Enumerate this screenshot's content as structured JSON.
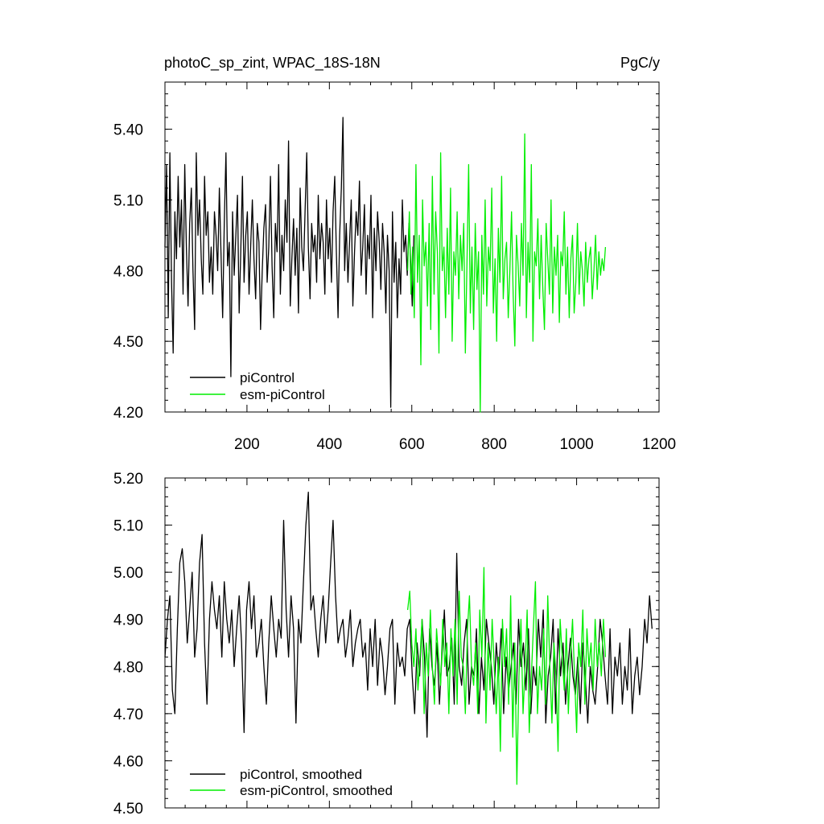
{
  "header": {
    "title": "photoC_sp_zint, WPAC_18S-18N",
    "units": "PgC/y"
  },
  "colors": {
    "piControl": "#000000",
    "esm_piControl": "#00ee00"
  },
  "chart_data": [
    {
      "type": "line",
      "panel": "top",
      "xlim": [
        1,
        1200
      ],
      "ylim": [
        4.2,
        5.6
      ],
      "yticks": [
        4.2,
        4.5,
        4.8,
        5.1,
        5.4
      ],
      "yticklabels": [
        "4.20",
        "4.50",
        "4.80",
        "5.10",
        "5.40"
      ],
      "xticks": [
        200,
        400,
        600,
        800,
        1000,
        1200
      ],
      "xticklabels": [
        "200",
        "400",
        "600",
        "800",
        "1000",
        "1200"
      ],
      "legend": "bottom-left",
      "grid": false,
      "series": [
        {
          "name": "piControl",
          "color": "#000000",
          "x_start": 1,
          "x_step": 4,
          "values": [
            4.9,
            5.25,
            4.6,
            5.3,
            4.75,
            4.45,
            5.05,
            4.85,
            5.2,
            4.9,
            5.1,
            4.7,
            5.25,
            4.9,
            4.65,
            5.0,
            5.15,
            4.8,
            4.55,
            5.3,
            4.95,
            5.1,
            4.85,
            4.7,
            5.2,
            4.95,
            5.05,
            4.75,
            4.9,
            4.7,
            5.05,
            4.95,
            4.8,
            5.15,
            4.88,
            4.6,
            5.0,
            5.3,
            4.82,
            4.92,
            4.35,
            5.05,
            4.78,
            4.95,
            5.12,
            4.62,
            4.88,
            5.2,
            4.75,
            4.95,
            5.05,
            4.7,
            4.9,
            5.1,
            4.85,
            4.68,
            5.0,
            4.92,
            4.55,
            4.8,
            4.98,
            5.08,
            4.75,
            4.9,
            5.2,
            4.82,
            4.6,
            5.0,
            4.88,
            5.25,
            4.7,
            4.95,
            4.8,
            5.1,
            4.92,
            5.35,
            4.65,
            4.85,
            5.02,
            4.78,
            4.98,
            4.62,
            5.15,
            4.9,
            4.8,
            5.05,
            5.3,
            4.9,
            4.68,
            5.0,
            4.88,
            4.95,
            4.75,
            5.12,
            4.85,
            5.0,
            4.92,
            4.7,
            5.1,
            4.85,
            4.98,
            4.75,
            5.05,
            5.2,
            4.88,
            4.6,
            4.95,
            5.15,
            5.45,
            4.8,
            5.0,
            4.75,
            4.92,
            5.1,
            4.65,
            4.88,
            5.05,
            4.95,
            5.18,
            4.78,
            4.9,
            5.08,
            4.7,
            4.95,
            4.85,
            5.12,
            4.6,
            4.98,
            4.8,
            5.05,
            4.92,
            4.72,
            5.0,
            4.88,
            4.62,
            4.95,
            4.8,
            4.22,
            5.05,
            4.75,
            4.92,
            4.6,
            4.85,
            4.7,
            5.1,
            4.88,
            4.95,
            4.78,
            5.0,
            4.85,
            4.65,
            4.95
          ]
        },
        {
          "name": "esm-piControl",
          "color": "#00ee00",
          "x_start": 590,
          "x_step": 4,
          "values": [
            4.8,
            5.05,
            4.7,
            4.9,
            4.6,
            5.25,
            4.75,
            4.95,
            4.4,
            5.1,
            4.82,
            4.92,
            4.65,
            5.0,
            4.55,
            5.2,
            4.7,
            5.05,
            4.88,
            4.45,
            5.3,
            4.8,
            4.9,
            4.6,
            4.98,
            4.7,
            5.15,
            4.5,
            4.88,
            4.78,
            5.05,
            4.68,
            4.95,
            4.8,
            5.0,
            4.45,
            4.85,
            5.25,
            4.62,
            4.9,
            4.55,
            5.0,
            4.72,
            4.88,
            4.2,
            4.95,
            4.7,
            5.1,
            4.65,
            4.9,
            4.8,
            5.15,
            4.62,
            4.85,
            4.5,
            4.98,
            4.75,
            5.2,
            4.68,
            4.85,
            4.92,
            4.6,
            4.8,
            5.05,
            4.7,
            4.48,
            4.95,
            4.82,
            4.65,
            5.0,
            4.78,
            5.38,
            4.6,
            4.92,
            4.75,
            5.25,
            4.5,
            4.88,
            4.82,
            5.02,
            4.68,
            4.95,
            4.72,
            4.55,
            5.0,
            4.85,
            4.7,
            5.1,
            4.62,
            4.9,
            4.78,
            4.95,
            4.58,
            4.88,
            4.82,
            5.05,
            4.7,
            4.9,
            4.6,
            4.85,
            4.95,
            4.62,
            4.75,
            5.0,
            4.7,
            4.88,
            4.8,
            4.65,
            4.92,
            4.75,
            4.85,
            4.9,
            4.68,
            4.8,
            4.95,
            4.72,
            4.88,
            4.78,
            4.85,
            4.8,
            4.9
          ]
        }
      ]
    },
    {
      "type": "line",
      "panel": "bottom",
      "xlim": [
        1,
        1200
      ],
      "ylim": [
        4.5,
        5.2
      ],
      "yticks": [
        4.5,
        4.6,
        4.7,
        4.8,
        4.9,
        5.0,
        5.1,
        5.2
      ],
      "yticklabels": [
        "4.50",
        "4.60",
        "4.70",
        "4.80",
        "4.90",
        "5.00",
        "5.10",
        "5.20"
      ],
      "legend": "bottom-left",
      "grid": false,
      "series": [
        {
          "name": "piControl, smoothed",
          "color": "#000000",
          "x_start": 1,
          "x_step": 6,
          "values": [
            4.82,
            4.9,
            4.95,
            4.75,
            4.7,
            4.88,
            5.02,
            5.05,
            4.98,
            4.85,
            4.92,
            5.0,
            4.82,
            4.88,
            5.02,
            5.08,
            4.85,
            4.72,
            4.9,
            4.98,
            4.92,
            4.88,
            4.95,
            4.82,
            4.98,
            4.9,
            4.85,
            4.92,
            4.8,
            4.88,
            4.95,
            4.85,
            4.66,
            4.92,
            4.98,
            4.88,
            4.95,
            4.82,
            4.85,
            4.9,
            4.8,
            4.72,
            4.85,
            4.95,
            4.88,
            4.82,
            4.9,
            4.86,
            5.11,
            4.92,
            4.82,
            4.95,
            4.88,
            4.68,
            4.9,
            4.85,
            4.98,
            5.1,
            5.17,
            4.92,
            4.95,
            4.88,
            4.82,
            4.9,
            4.95,
            4.85,
            4.92,
            5.02,
            5.11,
            4.95,
            4.85,
            4.88,
            4.9,
            4.82,
            4.86,
            4.92,
            4.8,
            4.85,
            4.88,
            4.9,
            4.82,
            4.85,
            4.75,
            4.88,
            4.8,
            4.9,
            4.76,
            4.86,
            4.82,
            4.74,
            4.8,
            4.88,
            4.9,
            4.72,
            4.85,
            4.8,
            4.82,
            4.78,
            4.88,
            4.9,
            4.78,
            4.7,
            4.85,
            4.78,
            4.9,
            4.82,
            4.65,
            4.88,
            4.8,
            4.76,
            4.85,
            4.72,
            4.82,
            4.92,
            4.78,
            4.8,
            4.86,
            4.72,
            5.04,
            4.8,
            4.76,
            4.85,
            4.9,
            4.72,
            4.8,
            4.78,
            4.88,
            4.7,
            4.82,
            4.75,
            4.9,
            4.85,
            4.8,
            4.72,
            4.85,
            4.78,
            4.88,
            4.7,
            4.82,
            4.75,
            4.8,
            4.85,
            4.72,
            4.9,
            4.8,
            4.85,
            4.75,
            4.88,
            4.7,
            4.8,
            4.76,
            4.9,
            4.82,
            4.92,
            4.68,
            4.78,
            4.82,
            4.9,
            4.7,
            4.88,
            4.78,
            4.85,
            4.72,
            4.8,
            4.86,
            4.78,
            4.74,
            4.82,
            4.7,
            4.85,
            4.78,
            4.68,
            4.8,
            4.75,
            4.72,
            4.8,
            4.9,
            4.85,
            4.78,
            4.72,
            4.88,
            4.7,
            4.82,
            4.78,
            4.85,
            4.72,
            4.8,
            4.75,
            4.88,
            4.7,
            4.78,
            4.82,
            4.74,
            4.8,
            4.9,
            4.85,
            4.95,
            4.88
          ]
        },
        {
          "name": "esm-piControl, smoothed",
          "color": "#00ee00",
          "x_start": 590,
          "x_step": 5,
          "values": [
            4.92,
            4.96,
            4.85,
            4.8,
            4.88,
            4.75,
            4.82,
            4.9,
            4.7,
            4.85,
            4.78,
            4.92,
            4.8,
            4.72,
            4.88,
            4.82,
            4.76,
            4.9,
            4.8,
            4.85,
            4.7,
            4.88,
            4.78,
            4.9,
            4.72,
            4.96,
            4.82,
            4.8,
            4.7,
            4.88,
            4.95,
            4.8,
            4.76,
            4.85,
            4.7,
            4.92,
            4.82,
            5.01,
            4.68,
            4.85,
            4.75,
            4.9,
            4.8,
            4.7,
            4.82,
            4.62,
            4.9,
            4.8,
            4.88,
            4.72,
            4.95,
            4.65,
            4.85,
            4.55,
            4.78,
            4.9,
            4.7,
            4.8,
            4.92,
            4.66,
            4.78,
            4.88,
            4.98,
            4.7,
            4.8,
            4.75,
            4.88,
            4.72,
            4.95,
            4.8,
            4.68,
            4.85,
            4.78,
            4.62,
            4.9,
            4.82,
            4.75,
            4.88,
            4.7,
            4.82,
            4.9,
            4.78,
            4.66,
            4.85,
            4.8,
            4.92,
            4.72,
            4.88,
            4.8,
            4.85,
            4.75,
            4.9,
            4.8,
            4.85,
            4.78,
            4.9,
            4.82
          ]
        }
      ]
    }
  ]
}
